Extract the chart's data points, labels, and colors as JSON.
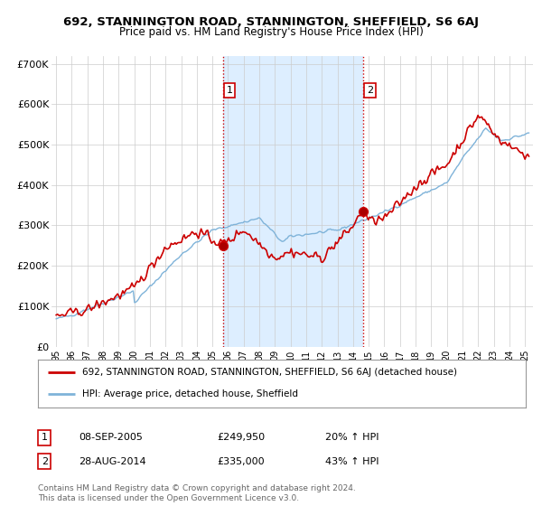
{
  "title": "692, STANNINGTON ROAD, STANNINGTON, SHEFFIELD, S6 6AJ",
  "subtitle": "Price paid vs. HM Land Registry's House Price Index (HPI)",
  "legend_line1": "692, STANNINGTON ROAD, STANNINGTON, SHEFFIELD, S6 6AJ (detached house)",
  "legend_line2": "HPI: Average price, detached house, Sheffield",
  "annotation1_label": "1",
  "annotation1_date": "08-SEP-2005",
  "annotation1_price": "£249,950",
  "annotation1_hpi": "20% ↑ HPI",
  "annotation1_year": 2005.69,
  "annotation1_value": 249950,
  "annotation2_label": "2",
  "annotation2_date": "28-AUG-2014",
  "annotation2_price": "£335,000",
  "annotation2_hpi": "43% ↑ HPI",
  "annotation2_year": 2014.66,
  "annotation2_value": 335000,
  "hpi_color": "#7fb3d9",
  "price_color": "#cc0000",
  "vline_color": "#cc0000",
  "shade_color": "#ddeeff",
  "ylim": [
    0,
    720000
  ],
  "yticks": [
    0,
    100000,
    200000,
    300000,
    400000,
    500000,
    600000,
    700000
  ],
  "ytick_labels": [
    "£0",
    "£100K",
    "£200K",
    "£300K",
    "£400K",
    "£500K",
    "£600K",
    "£700K"
  ],
  "footer": "Contains HM Land Registry data © Crown copyright and database right 2024.\nThis data is licensed under the Open Government Licence v3.0.",
  "background_color": "#ffffff"
}
